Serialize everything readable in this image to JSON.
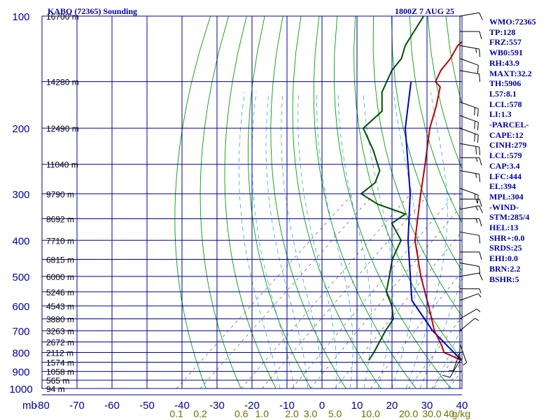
{
  "header": {
    "station": "KABQ (72365) Sounding",
    "time": "1800Z  7 AUG 25"
  },
  "stats": [
    "WMO:72365",
    "TP:128",
    "FRZ:557",
    "WB0:591",
    "RH:43.9",
    "MAXT:32.2",
    "TH:5906",
    "L57:8.1",
    "LCL:578",
    "LI:1.3",
    "-PARCEL-",
    "CAPE:12",
    "CINH:279",
    "LCL:579",
    "CAP:3.4",
    "LFC:444",
    "EL:394",
    "MPL:304",
    "-WIND-",
    "STM:285/4",
    "HEL:13",
    "SHR+:0.0",
    "SRDS:25",
    "EHI:0.0",
    "BRN:2.2",
    "BSHR:5"
  ],
  "colors": {
    "frame": "#0000a0",
    "dry_adiabat": "#00a000",
    "moist_adiabat": "#40a0e0",
    "mixing_ratio": "#707070",
    "temperature": "#c00000",
    "dewpoint": "#005000",
    "parcel": "#0000c0",
    "mixing_ratio_label": "#707000"
  },
  "chart_data": {
    "type": "skew-t",
    "pressure_unit_label": "mb",
    "pressure_ticks": [
      100,
      200,
      300,
      400,
      500,
      600,
      700,
      800,
      900,
      1000
    ],
    "temperature_ticks": [
      -80,
      -70,
      -60,
      -50,
      -40,
      -30,
      -20,
      -10,
      0,
      10,
      20,
      30,
      40
    ],
    "pressure_range_mb": [
      1000,
      100
    ],
    "mixing_ratio_unit": "g/kg",
    "mixing_ratio_labels": [
      "0.1",
      "0.2",
      "0.6",
      "1.0",
      "2.0",
      "3.0",
      "5.0",
      "10.0",
      "20.0",
      "30.0",
      "40"
    ],
    "height_labels": [
      {
        "p": 100,
        "label": "16700 m"
      },
      {
        "p": 150,
        "label": "14280 m"
      },
      {
        "p": 200,
        "label": "12490 m"
      },
      {
        "p": 250,
        "label": "11040 m"
      },
      {
        "p": 300,
        "label": "9790 m"
      },
      {
        "p": 350,
        "label": "8692 m"
      },
      {
        "p": 400,
        "label": "7710 m"
      },
      {
        "p": 450,
        "label": "6815 m"
      },
      {
        "p": 500,
        "label": "6000 m"
      },
      {
        "p": 550,
        "label": "5246 m"
      },
      {
        "p": 600,
        "label": "4543 m"
      },
      {
        "p": 650,
        "label": "3880 m"
      },
      {
        "p": 700,
        "label": "3263 m"
      },
      {
        "p": 750,
        "label": "2672 m"
      },
      {
        "p": 800,
        "label": "2112 m"
      },
      {
        "p": 850,
        "label": "1574 m"
      },
      {
        "p": 900,
        "label": "1058 m"
      },
      {
        "p": 950,
        "label": "565 m"
      },
      {
        "p": 1000,
        "label": "94 m"
      }
    ],
    "temperature_profile": [
      {
        "p": 840,
        "t": 31.0
      },
      {
        "p": 800,
        "t": 23.5
      },
      {
        "p": 770,
        "t": 21.0
      },
      {
        "p": 700,
        "t": 14.0
      },
      {
        "p": 600,
        "t": 4.5
      },
      {
        "p": 500,
        "t": -7.0
      },
      {
        "p": 400,
        "t": -20.0
      },
      {
        "p": 300,
        "t": -33.0
      },
      {
        "p": 250,
        "t": -41.0
      },
      {
        "p": 200,
        "t": -51.0
      },
      {
        "p": 175,
        "t": -56.0
      },
      {
        "p": 155,
        "t": -61.0
      },
      {
        "p": 150,
        "t": -64.0
      },
      {
        "p": 140,
        "t": -66.0
      },
      {
        "p": 130,
        "t": -67.0
      },
      {
        "p": 120,
        "t": -69.0
      },
      {
        "p": 110,
        "t": -69.0
      },
      {
        "p": 105,
        "t": -70.5
      },
      {
        "p": 100,
        "t": -70.0
      }
    ],
    "dewpoint_profile": [
      {
        "p": 840,
        "t": 4.5
      },
      {
        "p": 800,
        "t": 3.5
      },
      {
        "p": 700,
        "t": 0.0
      },
      {
        "p": 650,
        "t": -1.5
      },
      {
        "p": 600,
        "t": -6.0
      },
      {
        "p": 550,
        "t": -12.0
      },
      {
        "p": 500,
        "t": -16.0
      },
      {
        "p": 450,
        "t": -20.5
      },
      {
        "p": 400,
        "t": -24.0
      },
      {
        "p": 360,
        "t": -32.0
      },
      {
        "p": 340,
        "t": -31.0
      },
      {
        "p": 320,
        "t": -42.0
      },
      {
        "p": 300,
        "t": -50.0
      },
      {
        "p": 280,
        "t": -49.5
      },
      {
        "p": 260,
        "t": -52.0
      },
      {
        "p": 230,
        "t": -60.0
      },
      {
        "p": 200,
        "t": -70.0
      },
      {
        "p": 180,
        "t": -70.0
      },
      {
        "p": 160,
        "t": -76.0
      },
      {
        "p": 140,
        "t": -80.0
      },
      {
        "p": 130,
        "t": -81.0
      },
      {
        "p": 120,
        "t": -84.0
      },
      {
        "p": 100,
        "t": -88.0
      }
    ],
    "parcel_profile": [
      {
        "p": 840,
        "t": 31.0
      },
      {
        "p": 700,
        "t": 13.5
      },
      {
        "p": 580,
        "t": -2.0
      },
      {
        "p": 500,
        "t": -10.0
      },
      {
        "p": 400,
        "t": -22.0
      },
      {
        "p": 300,
        "t": -36.0
      },
      {
        "p": 200,
        "t": -58.0
      },
      {
        "p": 150,
        "t": -71.0
      }
    ],
    "wind_barbs": [
      {
        "p": 100,
        "dir": 80,
        "spd": 10
      },
      {
        "p": 110,
        "dir": 90,
        "spd": 10
      },
      {
        "p": 120,
        "dir": 100,
        "spd": 15
      },
      {
        "p": 130,
        "dir": 110,
        "spd": 10
      },
      {
        "p": 140,
        "dir": 100,
        "spd": 10
      },
      {
        "p": 170,
        "dir": 110,
        "spd": 20
      },
      {
        "p": 185,
        "dir": 110,
        "spd": 20
      },
      {
        "p": 200,
        "dir": 110,
        "spd": 20
      },
      {
        "p": 220,
        "dir": 100,
        "spd": 20
      },
      {
        "p": 240,
        "dir": 90,
        "spd": 15
      },
      {
        "p": 260,
        "dir": 100,
        "spd": 15
      },
      {
        "p": 290,
        "dir": 110,
        "spd": 15
      },
      {
        "p": 310,
        "dir": 90,
        "spd": 15
      },
      {
        "p": 330,
        "dir": 80,
        "spd": 15
      },
      {
        "p": 350,
        "dir": 90,
        "spd": 15
      },
      {
        "p": 380,
        "dir": 100,
        "spd": 10
      },
      {
        "p": 430,
        "dir": 90,
        "spd": 10
      },
      {
        "p": 460,
        "dir": 100,
        "spd": 10
      },
      {
        "p": 500,
        "dir": 80,
        "spd": 10
      },
      {
        "p": 540,
        "dir": 90,
        "spd": 5
      },
      {
        "p": 580,
        "dir": 70,
        "spd": 5
      },
      {
        "p": 650,
        "dir": 60,
        "spd": 5
      },
      {
        "p": 700,
        "dir": 50,
        "spd": 5
      },
      {
        "p": 760,
        "dir": 160,
        "spd": 5
      },
      {
        "p": 800,
        "dir": 200,
        "spd": 5
      },
      {
        "p": 840,
        "dir": 210,
        "spd": 10
      }
    ]
  }
}
